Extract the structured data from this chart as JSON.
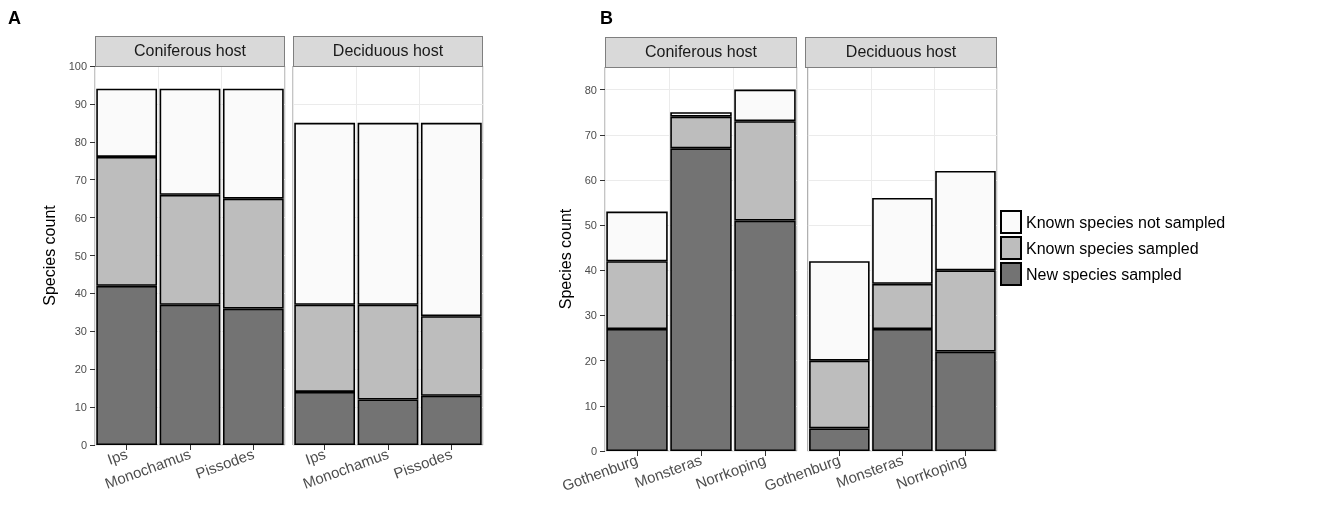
{
  "chart_data": [
    {
      "type": "bar",
      "stacked": true,
      "title": "Coniferous host",
      "ylabel": "Species count",
      "annotations": [
        "A"
      ],
      "categories": [
        "Ips",
        "Monochamus",
        "Pissodes"
      ],
      "ylim": [
        0,
        100
      ],
      "yticks": [
        0,
        10,
        20,
        30,
        40,
        50,
        60,
        70,
        80,
        90,
        100
      ],
      "grid": true,
      "series": [
        {
          "color": "#737373",
          "values": [
            42,
            37,
            36
          ]
        },
        {
          "color": "#bdbdbd",
          "values": [
            34,
            29,
            29
          ]
        },
        {
          "color": "#fafafa",
          "values": [
            18,
            28,
            29
          ]
        }
      ]
    },
    {
      "type": "bar",
      "stacked": true,
      "title": "Deciduous host",
      "categories": [
        "Ips",
        "Monochamus",
        "Pissodes"
      ],
      "ylim": [
        0,
        100
      ],
      "yticks": [
        0,
        10,
        20,
        30,
        40,
        50,
        60,
        70,
        80,
        90,
        100
      ],
      "tick_labels": "x",
      "grid": true,
      "series": [
        {
          "color": "#737373",
          "values": [
            14,
            12,
            13
          ]
        },
        {
          "color": "#bdbdbd",
          "values": [
            23,
            25,
            21
          ]
        },
        {
          "color": "#fafafa",
          "values": [
            48,
            48,
            51
          ]
        }
      ]
    },
    {
      "type": "bar",
      "stacked": true,
      "title": "Coniferous host",
      "ylabel": "Species count",
      "annotations": [
        "B"
      ],
      "categories": [
        "Gothenburg",
        "Monsteras",
        "Norrkoping"
      ],
      "ylim": [
        0,
        85
      ],
      "yticks": [
        0,
        10,
        20,
        30,
        40,
        50,
        60,
        70,
        80
      ],
      "grid": true,
      "series": [
        {
          "color": "#737373",
          "values": [
            27,
            67,
            51
          ]
        },
        {
          "color": "#bdbdbd",
          "values": [
            15,
            7,
            22
          ]
        },
        {
          "color": "#fafafa",
          "values": [
            11,
            1,
            7
          ]
        }
      ]
    },
    {
      "type": "bar",
      "stacked": true,
      "title": "Deciduous host",
      "categories": [
        "Gothenburg",
        "Monsteras",
        "Norrkoping"
      ],
      "ylim": [
        0,
        85
      ],
      "yticks": [
        0,
        10,
        20,
        30,
        40,
        50,
        60,
        70,
        80
      ],
      "tick_labels": "x",
      "grid": true,
      "legend": "right",
      "series": [
        {
          "name": "New species sampled",
          "color": "#737373",
          "values": [
            5,
            27,
            22
          ]
        },
        {
          "name": "Known species sampled",
          "color": "#bdbdbd",
          "values": [
            15,
            10,
            18
          ]
        },
        {
          "name": "Known species not sampled",
          "color": "#fafafa",
          "values": [
            22,
            19,
            22
          ]
        }
      ]
    }
  ]
}
